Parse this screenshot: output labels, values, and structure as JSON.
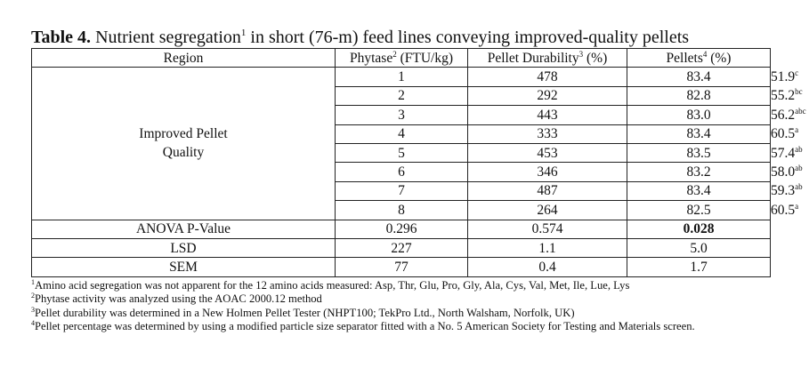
{
  "table": {
    "label": "Table 4.",
    "title_before": "Nutrient segregation",
    "title_sup": "1",
    "title_after": "in short (76-m) feed lines conveying improved-quality pellets",
    "headers": {
      "region": "Region",
      "phytase": "Phytase",
      "phytase_sup": "2",
      "phytase_unit": "(FTU/kg)",
      "durability": "Pellet Durability",
      "durability_sup": "3",
      "durability_unit": "(%)",
      "pellets": "Pellets",
      "pellets_sup": "4",
      "pellets_unit": "(%)"
    },
    "group_label_line1": "Improved Pellet",
    "group_label_line2": "Quality",
    "rows": [
      {
        "region": "1",
        "phytase": "478",
        "durability": "83.4",
        "pellets": "51.9",
        "sup": "c"
      },
      {
        "region": "2",
        "phytase": "292",
        "durability": "82.8",
        "pellets": "55.2",
        "sup": "bc"
      },
      {
        "region": "3",
        "phytase": "443",
        "durability": "83.0",
        "pellets": "56.2",
        "sup": "abc"
      },
      {
        "region": "4",
        "phytase": "333",
        "durability": "83.4",
        "pellets": "60.5",
        "sup": "a"
      },
      {
        "region": "5",
        "phytase": "453",
        "durability": "83.5",
        "pellets": "57.4",
        "sup": "ab"
      },
      {
        "region": "6",
        "phytase": "346",
        "durability": "83.2",
        "pellets": "58.0",
        "sup": "ab"
      },
      {
        "region": "7",
        "phytase": "487",
        "durability": "83.4",
        "pellets": "59.3",
        "sup": "ab"
      },
      {
        "region": "8",
        "phytase": "264",
        "durability": "82.5",
        "pellets": "60.5",
        "sup": "a"
      }
    ],
    "stats": [
      {
        "label": "ANOVA P-Value",
        "phytase": "0.296",
        "durability": "0.574",
        "pellets": "0.028",
        "bold": true
      },
      {
        "label": "LSD",
        "phytase": "227",
        "durability": "1.1",
        "pellets": "5.0",
        "bold": false
      },
      {
        "label": "SEM",
        "phytase": "77",
        "durability": "0.4",
        "pellets": "1.7",
        "bold": false
      }
    ]
  },
  "footnotes": [
    {
      "sup": "1",
      "text": "Amino acid segregation was not apparent for the 12 amino acids measured: Asp, Thr, Glu, Pro, Gly, Ala, Cys, Val, Met, Ile, Lue, Lys"
    },
    {
      "sup": "2",
      "text": "Phytase activity was analyzed using the AOAC 2000.12 method"
    },
    {
      "sup": "3",
      "text": "Pellet durability was determined in a New Holmen Pellet Tester (NHPT100; TekPro Ltd., North Walsham, Norfolk, UK)"
    },
    {
      "sup": "4",
      "text": "Pellet percentage was determined by using a modified particle size separator fitted with a No. 5 American Society for Testing and Materials screen."
    }
  ]
}
